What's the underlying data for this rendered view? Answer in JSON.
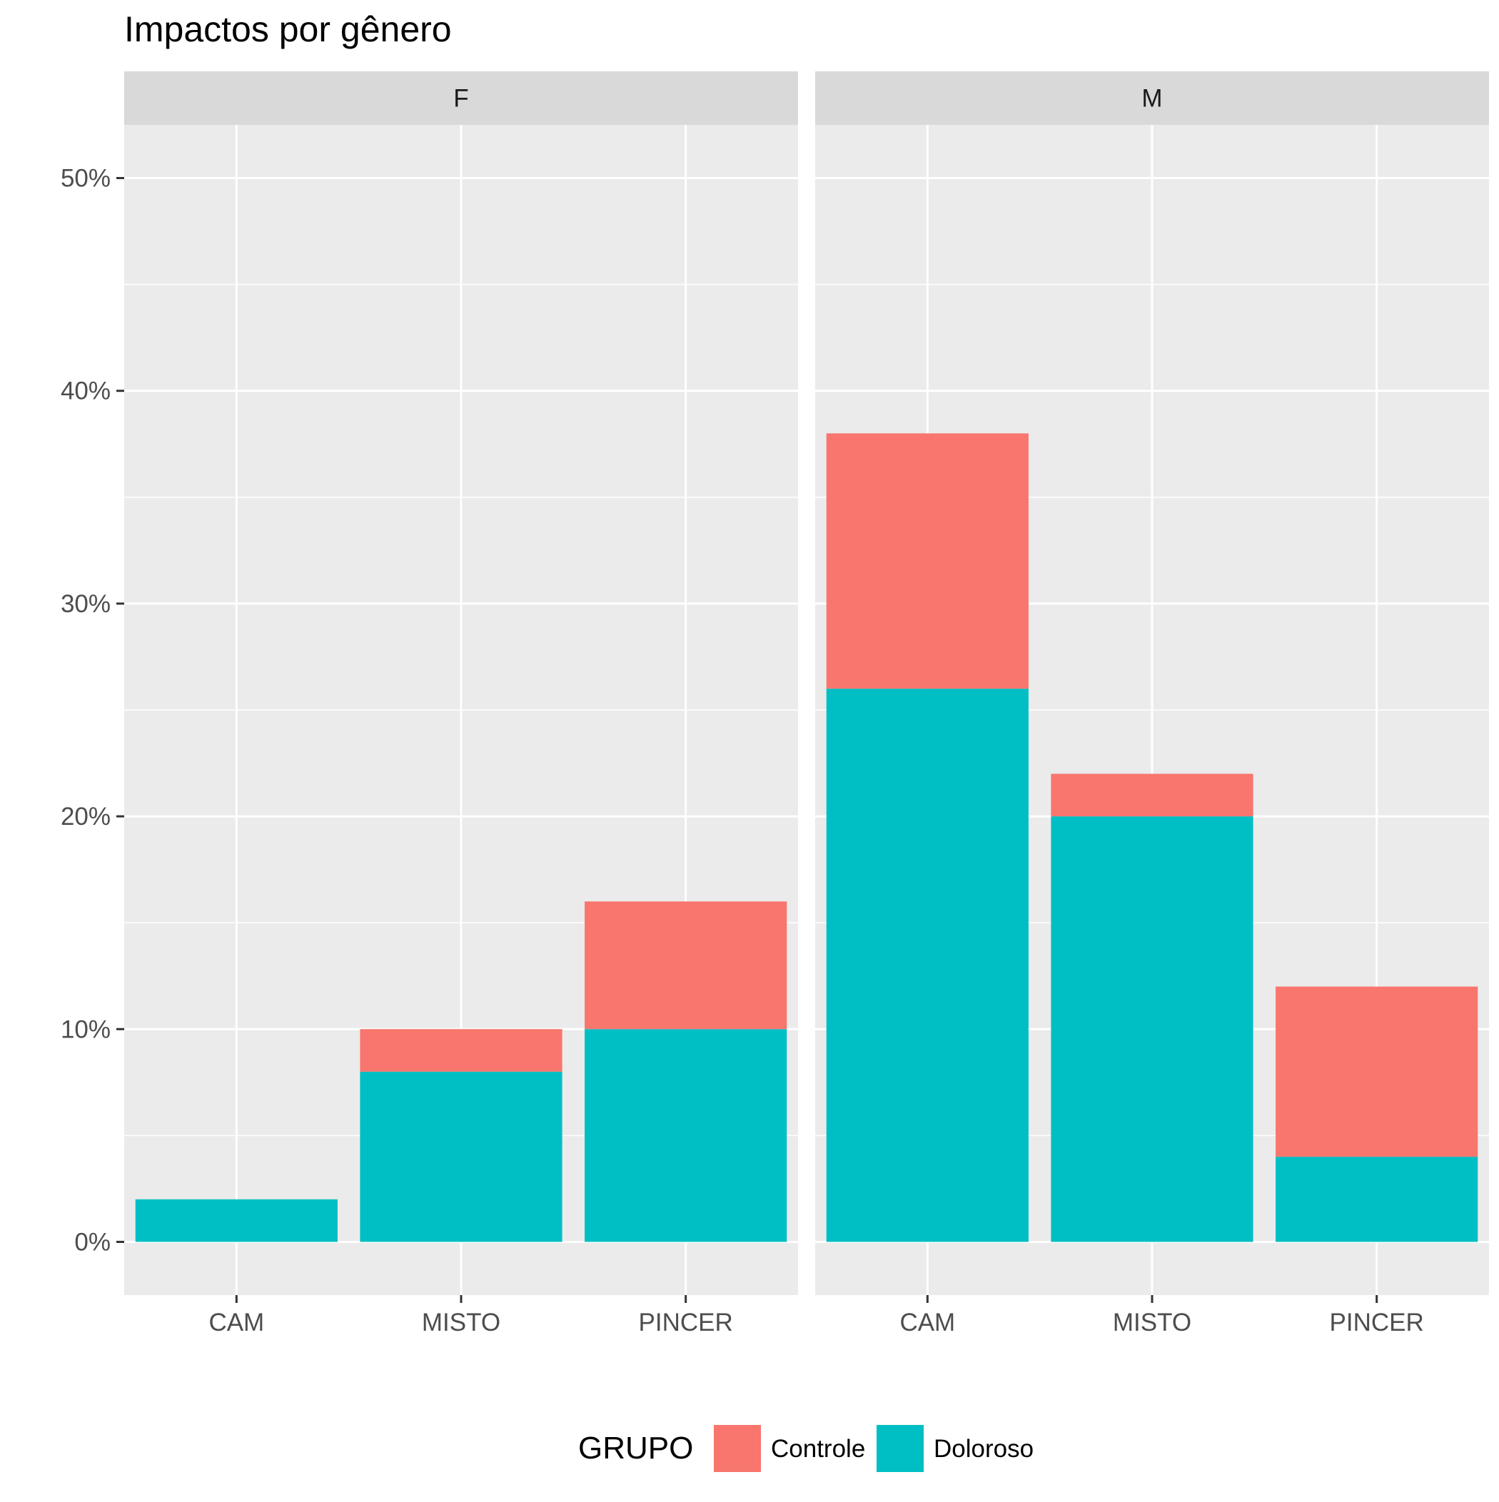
{
  "chart_data": {
    "type": "bar",
    "stacked": true,
    "title": "Impactos por gênero",
    "xlabel": "",
    "ylabel": "",
    "ylim": [
      -0.025,
      0.525
    ],
    "y_ticks": [
      0,
      0.1,
      0.2,
      0.3,
      0.4,
      0.5
    ],
    "y_tick_labels": [
      "0%",
      "10%",
      "20%",
      "30%",
      "40%",
      "50%"
    ],
    "categories": [
      "CAM",
      "MISTO",
      "PINCER"
    ],
    "grid": true,
    "legend": {
      "title": "GRUPO",
      "position": "bottom",
      "entries": [
        {
          "label": "Controle",
          "color": "#F8766D"
        },
        {
          "label": "Doloroso",
          "color": "#00BFC4"
        }
      ]
    },
    "facets": [
      {
        "label": "F",
        "series": [
          {
            "name": "Doloroso",
            "color": "#00BFC4",
            "values": [
              0.02,
              0.08,
              0.1
            ]
          },
          {
            "name": "Controle",
            "color": "#F8766D",
            "values": [
              0.0,
              0.02,
              0.06
            ]
          }
        ]
      },
      {
        "label": "M",
        "series": [
          {
            "name": "Doloroso",
            "color": "#00BFC4",
            "values": [
              0.26,
              0.2,
              0.04
            ]
          },
          {
            "name": "Controle",
            "color": "#F8766D",
            "values": [
              0.12,
              0.02,
              0.08
            ]
          }
        ]
      }
    ]
  }
}
